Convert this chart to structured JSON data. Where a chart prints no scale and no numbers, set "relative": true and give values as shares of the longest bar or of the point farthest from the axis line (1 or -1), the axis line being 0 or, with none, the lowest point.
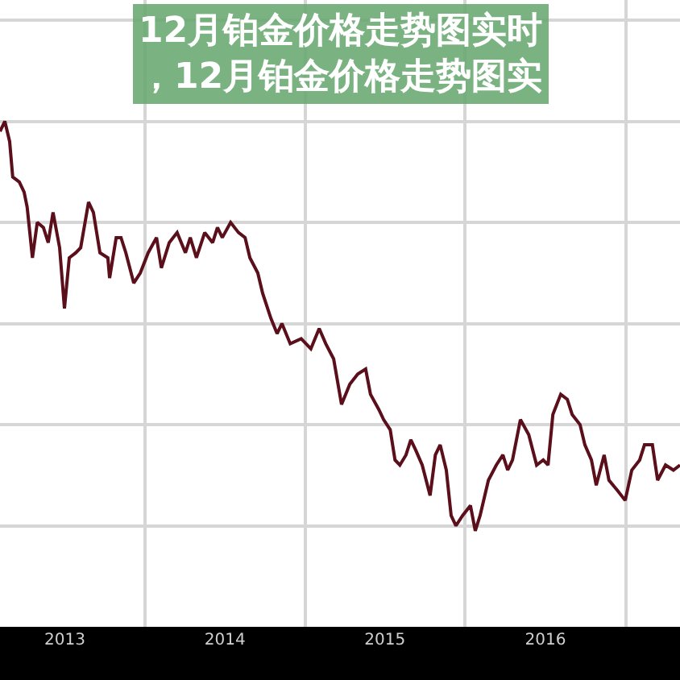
{
  "chart_data": {
    "type": "line",
    "title": "12月铂金价格走势图实时，12月铂金价格走势图实",
    "relative": true,
    "color": "#5a0f1b",
    "grid": true,
    "xlim": [
      "2013-02-04",
      "2017-05-05"
    ],
    "xticks": [
      {
        "value": "2013-07-02",
        "label": "2013"
      },
      {
        "value": "2014-07-02",
        "label": "2014"
      },
      {
        "value": "2015-07-02",
        "label": "2015"
      },
      {
        "value": "2016-07-02",
        "label": "2016"
      },
      {
        "value": "2014-01-01",
        "label": null
      },
      {
        "value": "2015-01-01",
        "label": null
      },
      {
        "value": "2016-01-01",
        "label": null
      },
      {
        "value": "2017-01-01",
        "label": null
      }
    ],
    "x": [
      "2013-02-04",
      "2013-02-15",
      "2013-02-26",
      "2013-03-05",
      "2013-03-20",
      "2013-03-31",
      "2013-04-07",
      "2013-04-19",
      "2013-04-30",
      "2013-05-14",
      "2013-05-25",
      "2013-06-05",
      "2013-06-20",
      "2013-07-01",
      "2013-07-12",
      "2013-07-27",
      "2013-08-07",
      "2013-08-25",
      "2013-09-05",
      "2013-09-20",
      "2013-10-08",
      "2013-10-12",
      "2013-10-27",
      "2013-11-07",
      "2013-11-18",
      "2013-12-06",
      "2013-12-21",
      "2014-01-08",
      "2014-01-27",
      "2014-02-07",
      "2014-02-25",
      "2014-03-15",
      "2014-04-03",
      "2014-04-14",
      "2014-04-28",
      "2014-05-17",
      "2014-06-04",
      "2014-06-15",
      "2014-06-26",
      "2014-07-15",
      "2014-08-02",
      "2014-08-17",
      "2014-08-28",
      "2014-09-15",
      "2014-09-26",
      "2014-10-15",
      "2014-10-29",
      "2014-11-09",
      "2014-11-28",
      "2014-12-23",
      "2015-01-14",
      "2015-02-02",
      "2015-02-17",
      "2015-03-07",
      "2015-03-25",
      "2015-04-13",
      "2015-05-01",
      "2015-05-19",
      "2015-05-30",
      "2015-06-18",
      "2015-06-29",
      "2015-07-14",
      "2015-07-25",
      "2015-08-05",
      "2015-08-19",
      "2015-08-30",
      "2015-09-10",
      "2015-09-25",
      "2015-10-13",
      "2015-10-25",
      "2015-11-05",
      "2015-11-19",
      "2015-11-30",
      "2015-12-11",
      "2015-12-26",
      "2016-01-13",
      "2016-01-24",
      "2016-02-04",
      "2016-02-23",
      "2016-03-12",
      "2016-03-27",
      "2016-04-07",
      "2016-04-18",
      "2016-05-06",
      "2016-05-25",
      "2016-06-12",
      "2016-06-27",
      "2016-07-08",
      "2016-07-19",
      "2016-08-06",
      "2016-08-21",
      "2016-09-01",
      "2016-09-19",
      "2016-09-30",
      "2016-10-15",
      "2016-10-26",
      "2016-11-13",
      "2016-11-24",
      "2016-12-13",
      "2016-12-31",
      "2017-01-15",
      "2017-02-02",
      "2017-02-13",
      "2017-03-03",
      "2017-03-15",
      "2017-04-02",
      "2017-04-20",
      "2017-05-05"
    ],
    "values": [
      0.98,
      1,
      0.96,
      0.89,
      0.88,
      0.86,
      0.83,
      0.73,
      0.8,
      0.79,
      0.76,
      0.82,
      0.75,
      0.63,
      0.73,
      0.74,
      0.75,
      0.84,
      0.82,
      0.74,
      0.73,
      0.69,
      0.77,
      0.77,
      0.74,
      0.68,
      0.7,
      0.74,
      0.77,
      0.71,
      0.76,
      0.78,
      0.74,
      0.77,
      0.73,
      0.78,
      0.76,
      0.79,
      0.77,
      0.8,
      0.78,
      0.77,
      0.73,
      0.7,
      0.66,
      0.61,
      0.58,
      0.6,
      0.56,
      0.57,
      0.55,
      0.59,
      0.56,
      0.53,
      0.44,
      0.48,
      0.5,
      0.51,
      0.46,
      0.43,
      0.41,
      0.39,
      0.33,
      0.32,
      0.34,
      0.37,
      0.35,
      0.32,
      0.26,
      0.34,
      0.36,
      0.31,
      0.22,
      0.2,
      0.22,
      0.24,
      0.19,
      0.22,
      0.29,
      0.32,
      0.34,
      0.31,
      0.33,
      0.41,
      0.38,
      0.32,
      0.33,
      0.32,
      0.42,
      0.46,
      0.45,
      0.42,
      0.4,
      0.36,
      0.33,
      0.28,
      0.34,
      0.29,
      0.27,
      0.25,
      0.31,
      0.33,
      0.36,
      0.36,
      0.29,
      0.32,
      0.31,
      0.32
    ]
  }
}
